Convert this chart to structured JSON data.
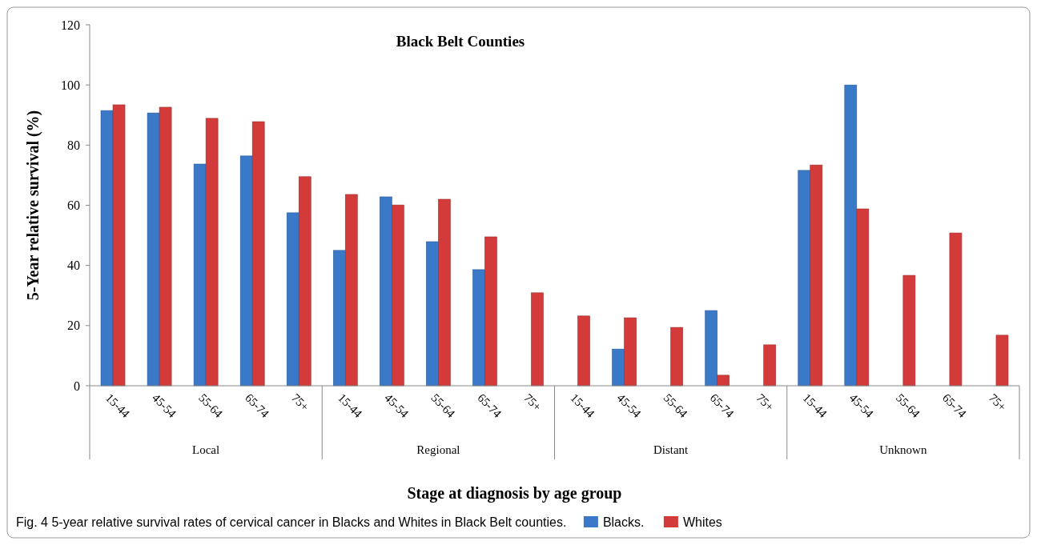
{
  "chart_data": {
    "type": "bar",
    "title": "Black Belt Counties",
    "xlabel": "Stage at diagnosis by age group",
    "ylabel": "5-Year relative survival (%)",
    "categories": [
      "15-44",
      "45-54",
      "55-64",
      "65-74",
      "75+",
      "15-44",
      "45-54",
      "55-64",
      "65-74",
      "75+",
      "15-44",
      "45-54",
      "55-64",
      "65-74",
      "75+",
      "15-44",
      "45-54",
      "55-64",
      "65-74",
      "75+"
    ],
    "series": [
      {
        "name": "Blacks.",
        "color": "#3a78c8",
        "values": [
          91.5,
          90.7,
          73.7,
          76.4,
          57.5,
          45,
          62.8,
          47.9,
          38.6,
          null,
          null,
          12.2,
          null,
          25,
          null,
          71.6,
          100,
          null,
          null,
          null
        ]
      },
      {
        "name": "Whites",
        "color": "#d33b3b",
        "values": [
          93.4,
          92.6,
          88.9,
          87.8,
          69.5,
          63.6,
          60.1,
          62,
          49.5,
          30.9,
          23.2,
          22.6,
          19.4,
          3.5,
          13.6,
          73.4,
          58.8,
          36.7,
          50.8,
          16.8
        ]
      }
    ],
    "ylim": [
      0,
      120
    ],
    "yticks": [
      0,
      20,
      40,
      60,
      80,
      100,
      120
    ],
    "grid": false,
    "legend": "bottom",
    "annotations": [
      "Local",
      "Regional",
      "Distant",
      "Unknown",
      "Fig. 4 5-year relative survival rates of cervical cancer in Blacks and Whites in Black Belt counties."
    ]
  }
}
